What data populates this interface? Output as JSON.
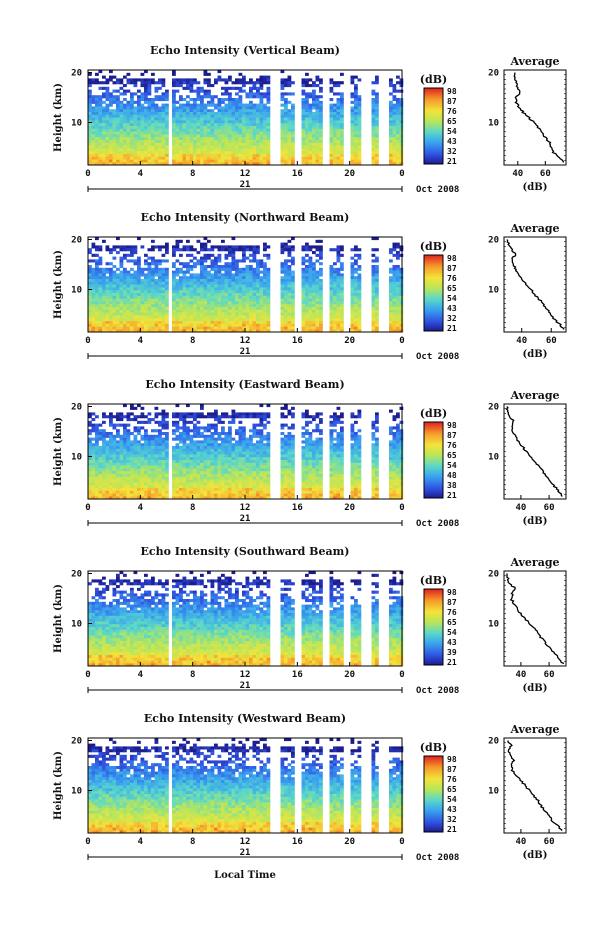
{
  "figure": {
    "date_label": "Oct 2008",
    "day_label": "21",
    "x_axis_label": "Local Time",
    "y_axis_label": "Height (km)",
    "average_title": "Average",
    "average_unit": "(dB)",
    "colorbar_unit": "(dB)"
  },
  "chart_data": [
    {
      "type": "heatmap",
      "title": "Echo Intensity (Vertical Beam)",
      "ylabel": "Height (km)",
      "x_ticks": [
        "0",
        "4",
        "8",
        "12",
        "16",
        "20",
        "0"
      ],
      "xlim": [
        0,
        24
      ],
      "y_ticks": [
        "10",
        "20"
      ],
      "ylim": [
        1.5,
        20.5
      ],
      "colorbar": {
        "label": "(dB)",
        "ticks": [
          "98",
          "87",
          "76",
          "65",
          "54",
          "43",
          "32",
          "21"
        ]
      },
      "data_gaps_hours": [
        [
          6.1,
          6.3
        ],
        [
          13.8,
          14.7
        ],
        [
          15.7,
          16.2
        ],
        [
          17.8,
          18.5
        ],
        [
          19.5,
          20.0
        ],
        [
          20.9,
          21.6
        ],
        [
          22.2,
          23.0
        ]
      ],
      "average_profile": {
        "xlabel": "(dB)",
        "xticks": [
          "40",
          "60"
        ],
        "xlim": [
          30,
          75
        ],
        "ylim": [
          1.5,
          20.5
        ],
        "yticks": [
          "10",
          "20"
        ],
        "height_km": [
          2,
          3,
          4,
          5,
          6,
          7,
          8,
          9,
          10,
          11,
          12,
          13,
          14,
          15,
          16,
          17,
          18,
          19,
          20
        ],
        "db": [
          73,
          70,
          66,
          64,
          63,
          60,
          57,
          55,
          52,
          48,
          44,
          41,
          39,
          38,
          42,
          40,
          39,
          38,
          38
        ]
      }
    },
    {
      "type": "heatmap",
      "title": "Echo Intensity (Northward Beam)",
      "ylabel": "Height (km)",
      "x_ticks": [
        "0",
        "4",
        "8",
        "12",
        "16",
        "20",
        "0"
      ],
      "xlim": [
        0,
        24
      ],
      "y_ticks": [
        "10",
        "20"
      ],
      "ylim": [
        1.5,
        20.5
      ],
      "colorbar": {
        "label": "(dB)",
        "ticks": [
          "98",
          "87",
          "76",
          "65",
          "54",
          "43",
          "32",
          "21"
        ]
      },
      "data_gaps_hours": [
        [
          6.1,
          6.3
        ],
        [
          13.8,
          14.7
        ],
        [
          15.7,
          16.2
        ],
        [
          17.8,
          18.5
        ],
        [
          19.5,
          20.0
        ],
        [
          20.9,
          21.6
        ],
        [
          22.2,
          23.0
        ]
      ],
      "average_profile": {
        "xlabel": "(dB)",
        "xticks": [
          "40",
          "60"
        ],
        "xlim": [
          28,
          70
        ],
        "ylim": [
          1.5,
          20.5
        ],
        "yticks": [
          "10",
          "20"
        ],
        "height_km": [
          2,
          3,
          4,
          5,
          6,
          7,
          8,
          9,
          10,
          11,
          12,
          13,
          14,
          15,
          16,
          17,
          18,
          19,
          20
        ],
        "db": [
          69,
          66,
          62,
          60,
          57,
          55,
          52,
          49,
          46,
          43,
          40,
          38,
          36,
          34,
          33,
          36,
          33,
          31,
          30
        ]
      }
    },
    {
      "type": "heatmap",
      "title": "Echo Intensity (Eastward Beam)",
      "ylabel": "Height (km)",
      "x_ticks": [
        "0",
        "4",
        "8",
        "12",
        "16",
        "20",
        "0"
      ],
      "xlim": [
        0,
        24
      ],
      "y_ticks": [
        "10",
        "20"
      ],
      "ylim": [
        1.5,
        20.5
      ],
      "colorbar": {
        "label": "(dB)",
        "ticks": [
          "98",
          "87",
          "76",
          "65",
          "54",
          "48",
          "38",
          "21"
        ]
      },
      "data_gaps_hours": [
        [
          6.1,
          6.3
        ],
        [
          13.8,
          14.7
        ],
        [
          15.7,
          16.2
        ],
        [
          17.8,
          18.5
        ],
        [
          19.5,
          20.0
        ],
        [
          20.9,
          21.6
        ],
        [
          22.2,
          23.0
        ]
      ],
      "average_profile": {
        "xlabel": "(dB)",
        "xticks": [
          "40",
          "60"
        ],
        "xlim": [
          28,
          72
        ],
        "ylim": [
          1.5,
          20.5
        ],
        "yticks": [
          "10",
          "20"
        ],
        "height_km": [
          2,
          3,
          4,
          5,
          6,
          7,
          8,
          9,
          10,
          11,
          12,
          13,
          14,
          15,
          16,
          17,
          18,
          19,
          20
        ],
        "db": [
          70,
          67,
          64,
          61,
          58,
          56,
          53,
          50,
          47,
          44,
          41,
          38,
          36,
          34,
          33,
          35,
          32,
          31,
          30
        ]
      }
    },
    {
      "type": "heatmap",
      "title": "Echo Intensity (Southward Beam)",
      "ylabel": "Height (km)",
      "x_ticks": [
        "0",
        "4",
        "8",
        "12",
        "16",
        "20",
        "0"
      ],
      "xlim": [
        0,
        24
      ],
      "y_ticks": [
        "10",
        "20"
      ],
      "ylim": [
        1.5,
        20.5
      ],
      "colorbar": {
        "label": "(dB)",
        "ticks": [
          "98",
          "87",
          "76",
          "65",
          "54",
          "43",
          "39",
          "21"
        ]
      },
      "data_gaps_hours": [
        [
          6.1,
          6.3
        ],
        [
          13.8,
          14.7
        ],
        [
          15.7,
          16.2
        ],
        [
          17.8,
          18.5
        ],
        [
          19.5,
          20.0
        ],
        [
          20.9,
          21.6
        ],
        [
          22.2,
          23.0
        ]
      ],
      "average_profile": {
        "xlabel": "(dB)",
        "xticks": [
          "40",
          "60"
        ],
        "xlim": [
          28,
          72
        ],
        "ylim": [
          1.5,
          20.5
        ],
        "yticks": [
          "10",
          "20"
        ],
        "height_km": [
          2,
          3,
          4,
          5,
          6,
          7,
          8,
          9,
          10,
          11,
          12,
          13,
          14,
          15,
          16,
          17,
          18,
          19,
          20
        ],
        "db": [
          70,
          67,
          64,
          61,
          58,
          55,
          52,
          50,
          46,
          43,
          40,
          37,
          35,
          33,
          34,
          36,
          32,
          31,
          30
        ]
      }
    },
    {
      "type": "heatmap",
      "title": "Echo Intensity (Westward Beam)",
      "ylabel": "Height (km)",
      "xlabel": "Local Time",
      "x_ticks": [
        "0",
        "4",
        "8",
        "12",
        "16",
        "20",
        "0"
      ],
      "xlim": [
        0,
        24
      ],
      "y_ticks": [
        "10",
        "20"
      ],
      "ylim": [
        1.5,
        20.5
      ],
      "colorbar": {
        "label": "(dB)",
        "ticks": [
          "98",
          "87",
          "76",
          "65",
          "54",
          "43",
          "32",
          "21"
        ]
      },
      "data_gaps_hours": [
        [
          6.1,
          6.3
        ],
        [
          13.8,
          14.7
        ],
        [
          15.7,
          16.2
        ],
        [
          17.8,
          18.5
        ],
        [
          19.5,
          20.0
        ],
        [
          20.9,
          21.6
        ],
        [
          22.2,
          23.0
        ]
      ],
      "average_profile": {
        "xlabel": "(dB)",
        "xticks": [
          "40",
          "60"
        ],
        "xlim": [
          28,
          72
        ],
        "ylim": [
          1.5,
          20.5
        ],
        "yticks": [
          "10",
          "20"
        ],
        "height_km": [
          2,
          3,
          4,
          5,
          6,
          7,
          8,
          9,
          10,
          11,
          12,
          13,
          14,
          15,
          16,
          17,
          18,
          19,
          20
        ],
        "db": [
          69,
          66,
          62,
          60,
          57,
          54,
          52,
          49,
          46,
          43,
          40,
          37,
          34,
          33,
          35,
          33,
          31,
          33,
          31
        ]
      }
    }
  ]
}
